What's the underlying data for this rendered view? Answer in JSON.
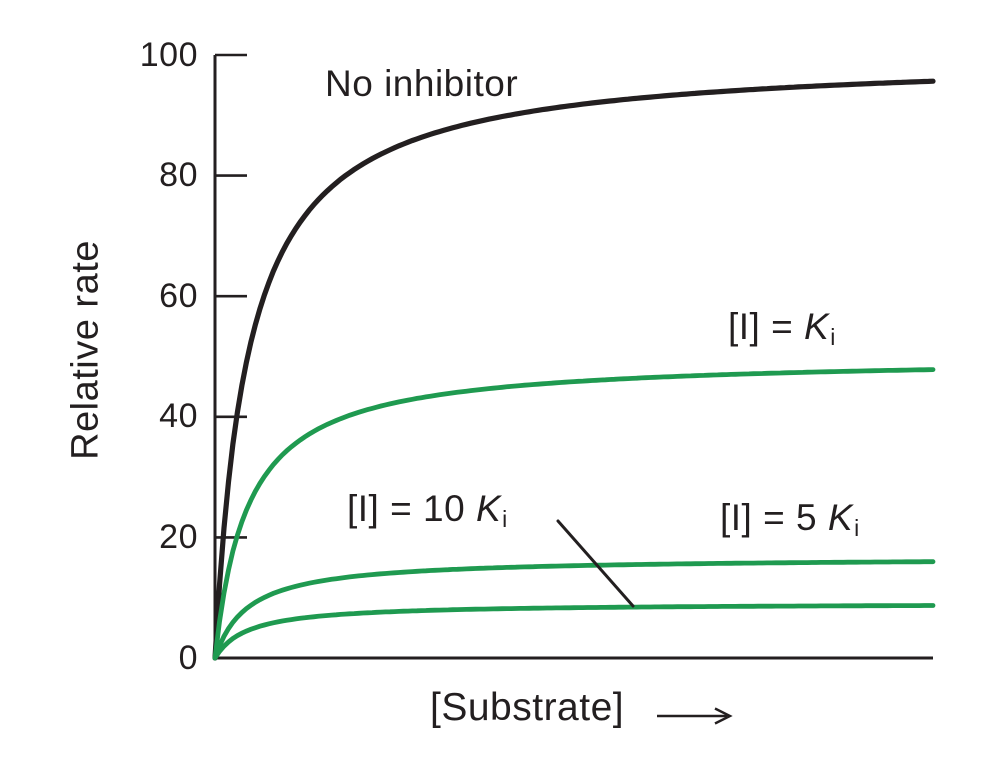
{
  "figure": {
    "background": "#ffffff",
    "text_color": "#231f20",
    "curve_black": "#231f20",
    "curve_green": "#1f9a50"
  },
  "axis": {
    "ylabel": "Relative rate",
    "xlabel": "[Substrate]",
    "x_arrow_icon": "right-arrow",
    "yticks": [
      "100",
      "80",
      "60",
      "40",
      "20",
      "0"
    ]
  },
  "labels": {
    "no_inhibitor": {
      "text": "No inhibitor"
    },
    "ki": {
      "prefix": "[I] = ",
      "k": "K",
      "sub": "i"
    },
    "ki10": {
      "prefix": "[I] = 10 ",
      "k": "K",
      "sub": "i"
    },
    "ki5": {
      "prefix": "[I] = 5 ",
      "k": "K",
      "sub": "i"
    }
  },
  "chart_data": {
    "type": "line",
    "title": "",
    "xlabel": "[Substrate]",
    "ylabel": "Relative rate",
    "ylim": [
      0,
      100
    ],
    "yticks": [
      0,
      20,
      40,
      60,
      80,
      100
    ],
    "xticks_labeled": false,
    "grid": false,
    "legend_position": "inline-annotations",
    "model": "Michaelis-Menten saturation curves (noncompetitive inhibition; Vmax reduced, Km unchanged)",
    "s_max_over_km": 22,
    "series": [
      {
        "name": "No inhibitor",
        "color": "#231f20",
        "vmax": 100,
        "km": 1,
        "value_at_right_edge": 95.5
      },
      {
        "name": "[I] = Ki",
        "color": "#1f9a50",
        "vmax": 50,
        "km": 1,
        "value_at_right_edge": 48
      },
      {
        "name": "[I] = 5 Ki",
        "color": "#1f9a50",
        "vmax": 16.7,
        "km": 1,
        "value_at_right_edge": 16
      },
      {
        "name": "[I] = 10 Ki",
        "color": "#1f9a50",
        "vmax": 9.1,
        "km": 1,
        "value_at_right_edge": 8.7
      }
    ],
    "annotations": [
      {
        "type": "pointer-line",
        "text": "[I] = 10 Ki",
        "points_to_series": "[I] = 10 Ki"
      }
    ]
  }
}
